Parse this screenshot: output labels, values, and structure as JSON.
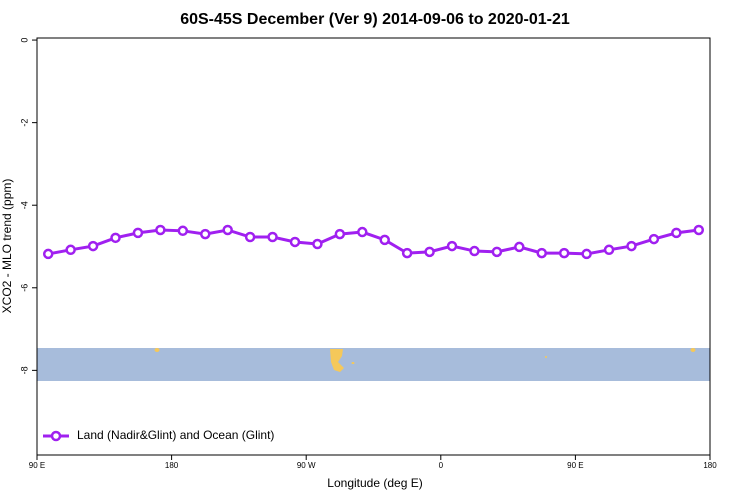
{
  "chart_data": {
    "type": "line",
    "title": "60S-45S December (Ver 9)   2014-09-06 to 2020-01-21",
    "x_label": "Longitude (deg E)",
    "y_label": "XCO2 - MLO trend (ppm)",
    "x": [
      97.5,
      112.5,
      127.5,
      142.5,
      157.5,
      172.5,
      187.5,
      202.5,
      217.5,
      232.5,
      247.5,
      262.5,
      277.5,
      292.5,
      307.5,
      322.5,
      337.5,
      352.5,
      367.5,
      382.5,
      397.5,
      412.5,
      427.5,
      442.5,
      457.5,
      472.5,
      487.5,
      502.5,
      517.5,
      532.5
    ],
    "series": [
      {
        "name": "Land (Nadir&Glint) and Ocean (Glint)",
        "color": "#a020f0",
        "values": [
          -5.18,
          -5.08,
          -4.99,
          -4.79,
          -4.67,
          -4.6,
          -4.62,
          -4.7,
          -4.6,
          -4.77,
          -4.77,
          -4.89,
          -4.94,
          -4.7,
          -4.65,
          -4.84,
          -5.16,
          -5.13,
          -4.99,
          -5.11,
          -5.13,
          -5.01,
          -5.16,
          -5.16,
          -5.18,
          -5.08,
          -4.99,
          -4.82,
          -4.67,
          -4.6
        ]
      }
    ],
    "xlim": [
      90,
      540
    ],
    "xticks": [
      {
        "value": 90,
        "label": "90 E"
      },
      {
        "value": 180,
        "label": "180"
      },
      {
        "value": 270,
        "label": "90 W"
      },
      {
        "value": 360,
        "label": "0"
      },
      {
        "value": 450,
        "label": "90 E"
      },
      {
        "value": 540,
        "label": "180"
      }
    ],
    "ylim": [
      -10.05,
      0.05
    ],
    "yticks": [
      0,
      -2,
      -4,
      -6,
      -8
    ],
    "legend": "bottom-left"
  }
}
